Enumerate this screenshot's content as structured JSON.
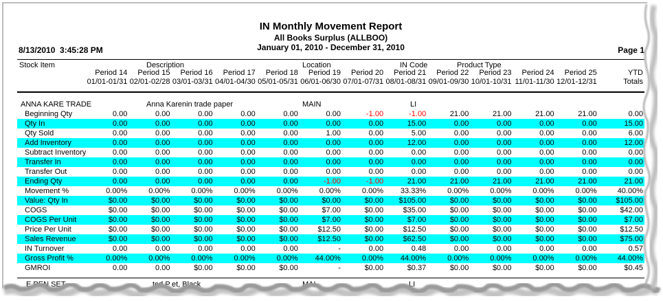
{
  "report": {
    "title": "IN Monthly Movement Report",
    "subtitle": "All Books Surplus (ALLBOO)",
    "date_range": "January 01, 2010 - December 31, 2010",
    "timestamp": "8/13/2010  3:45:28 PM",
    "page_number": "Page 1"
  },
  "colors": {
    "highlight_row": "#00ffff",
    "negative_value": "#ff0000",
    "border_gray": "#bdbdbd"
  },
  "table": {
    "column_group_headers": [
      {
        "label": "Stock Item"
      },
      {
        "label": "Description"
      },
      {
        "label": "Location"
      },
      {
        "label": "IN Code"
      },
      {
        "label": "Product Type"
      }
    ],
    "periods": [
      {
        "name": "Period 14",
        "dates": "01/01-01/31"
      },
      {
        "name": "Period 15",
        "dates": "02/01-02/28"
      },
      {
        "name": "Period 16",
        "dates": "03/01-03/31"
      },
      {
        "name": "Period 17",
        "dates": "04/01-04/30"
      },
      {
        "name": "Period 18",
        "dates": "05/01-05/31"
      },
      {
        "name": "Period 19",
        "dates": "06/01-06/30"
      },
      {
        "name": "Period 20",
        "dates": "07/01-07/31"
      },
      {
        "name": "Period 21",
        "dates": "08/01-08/31"
      },
      {
        "name": "Period 22",
        "dates": "09/01-09/30"
      },
      {
        "name": "Period 23",
        "dates": "10/01-10/31"
      },
      {
        "name": "Period 24",
        "dates": "11/01-11/30"
      },
      {
        "name": "Period 25",
        "dates": "12/01-12/31"
      }
    ],
    "ytd_header": {
      "name": "YTD",
      "dates": "Totals"
    },
    "group": {
      "stock_item": "ANNA KARE TRADE",
      "description": "Anna Karenin trade paper",
      "location": "MAIN",
      "in_code": "LI"
    },
    "rows": [
      {
        "label": "Beginning Qty",
        "hl": false,
        "red": [
          6,
          7
        ],
        "values": [
          "0.00",
          "0.00",
          "0.00",
          "0.00",
          "0.00",
          "0.00",
          "-1.00",
          "-1.00",
          "21.00",
          "21.00",
          "21.00",
          "21.00",
          "0.00"
        ]
      },
      {
        "label": "Qty In",
        "hl": true,
        "red": [],
        "values": [
          "0.00",
          "0.00",
          "0.00",
          "0.00",
          "0.00",
          "0.00",
          "0.00",
          "15.00",
          "0.00",
          "0.00",
          "0.00",
          "0.00",
          "15.00"
        ]
      },
      {
        "label": "Qty Sold",
        "hl": false,
        "red": [],
        "values": [
          "0.00",
          "0.00",
          "0.00",
          "0.00",
          "0.00",
          "1.00",
          "0.00",
          "5.00",
          "0.00",
          "0.00",
          "0.00",
          "0.00",
          "6.00"
        ]
      },
      {
        "label": "Add Inventory",
        "hl": true,
        "red": [],
        "values": [
          "0.00",
          "0.00",
          "0.00",
          "0.00",
          "0.00",
          "0.00",
          "0.00",
          "12.00",
          "0.00",
          "0.00",
          "0.00",
          "0.00",
          "12.00"
        ]
      },
      {
        "label": "Subtract Inventory",
        "hl": false,
        "red": [],
        "values": [
          "0.00",
          "0.00",
          "0.00",
          "0.00",
          "0.00",
          "0.00",
          "0.00",
          "0.00",
          "0.00",
          "0.00",
          "0.00",
          "0.00",
          "0.00"
        ]
      },
      {
        "label": "Transfer In",
        "hl": true,
        "red": [],
        "values": [
          "0.00",
          "0.00",
          "0.00",
          "0.00",
          "0.00",
          "0.00",
          "0.00",
          "0.00",
          "0.00",
          "0.00",
          "0.00",
          "0.00",
          "0.00"
        ]
      },
      {
        "label": "Transfer Out",
        "hl": false,
        "red": [],
        "values": [
          "0.00",
          "0.00",
          "0.00",
          "0.00",
          "0.00",
          "0.00",
          "0.00",
          "0.00",
          "0.00",
          "0.00",
          "0.00",
          "0.00",
          "0.00"
        ]
      },
      {
        "label": "Ending Qty",
        "hl": true,
        "red": [
          5,
          6
        ],
        "values": [
          "0.00",
          "0.00",
          "0.00",
          "0.00",
          "0.00",
          "-1.00",
          "-1.00",
          "21.00",
          "21.00",
          "21.00",
          "21.00",
          "21.00",
          "21.00"
        ]
      },
      {
        "label": "Movement %",
        "hl": false,
        "red": [],
        "values": [
          "0.00%",
          "0.00%",
          "0.00%",
          "0.00%",
          "0.00%",
          "0.00%",
          "0.00%",
          "33.33%",
          "0.00%",
          "0.00%",
          "0.00%",
          "0.00%",
          "40.00%"
        ]
      },
      {
        "label": "Value: Qty In",
        "hl": true,
        "red": [],
        "values": [
          "$0.00",
          "$0.00",
          "$0.00",
          "$0.00",
          "$0.00",
          "$0.00",
          "$0.00",
          "$105.00",
          "$0.00",
          "$0.00",
          "$0.00",
          "$0.00",
          "$105.00"
        ]
      },
      {
        "label": "COGS",
        "hl": false,
        "red": [],
        "values": [
          "$0.00",
          "$0.00",
          "$0.00",
          "$0.00",
          "$0.00",
          "$7.00",
          "$0.00",
          "$35.00",
          "$0.00",
          "$0.00",
          "$0.00",
          "$0.00",
          "$42.00"
        ]
      },
      {
        "label": "COGS Per Unit",
        "hl": true,
        "red": [],
        "values": [
          "$0.00",
          "$0.00",
          "$0.00",
          "$0.00",
          "$0.00",
          "$7.00",
          "$0.00",
          "$7.00",
          "$0.00",
          "$0.00",
          "$0.00",
          "$0.00",
          "$7.00"
        ]
      },
      {
        "label": "Price Per Unit",
        "hl": false,
        "red": [],
        "values": [
          "$0.00",
          "$0.00",
          "$0.00",
          "$0.00",
          "$0.00",
          "$12.50",
          "$0.00",
          "$12.50",
          "$0.00",
          "$0.00",
          "$0.00",
          "$0.00",
          "$12.50"
        ]
      },
      {
        "label": "Sales Revenue",
        "hl": true,
        "red": [],
        "values": [
          "$0.00",
          "$0.00",
          "$0.00",
          "$0.00",
          "$0.00",
          "$12.50",
          "$0.00",
          "$62.50",
          "$0.00",
          "$0.00",
          "$0.00",
          "$0.00",
          "$75.00"
        ]
      },
      {
        "label": "IN Turnover",
        "hl": false,
        "red": [],
        "values": [
          "0.00",
          "0.00",
          "0.00",
          "0.00",
          "0.00",
          "-",
          "0.00",
          "0.48",
          "0.00",
          "0.00",
          "0.00",
          "0.00",
          "0.57"
        ]
      },
      {
        "label": "Gross Profit %",
        "hl": true,
        "red": [],
        "values": [
          "0.00%",
          "0.00%",
          "0.00%",
          "0.00%",
          "0.00%",
          "44.00%",
          "0.00%",
          "44.00%",
          "0.00%",
          "0.00%",
          "0.00%",
          "0.00%",
          "44.00%"
        ]
      },
      {
        "label": "GMROI",
        "hl": false,
        "red": [],
        "values": [
          "0.00",
          "0.00",
          "$0.00",
          "$0.00",
          "$0.00",
          "-",
          "$0.00",
          "$0.37",
          "$0.00",
          "$0.00",
          "$0.00",
          "$0.00",
          "$0.45"
        ]
      }
    ]
  },
  "torn_row": {
    "fragments": [
      "E PEN SET",
      "ted P",
      "et, Black",
      "MAI",
      "LI"
    ]
  }
}
